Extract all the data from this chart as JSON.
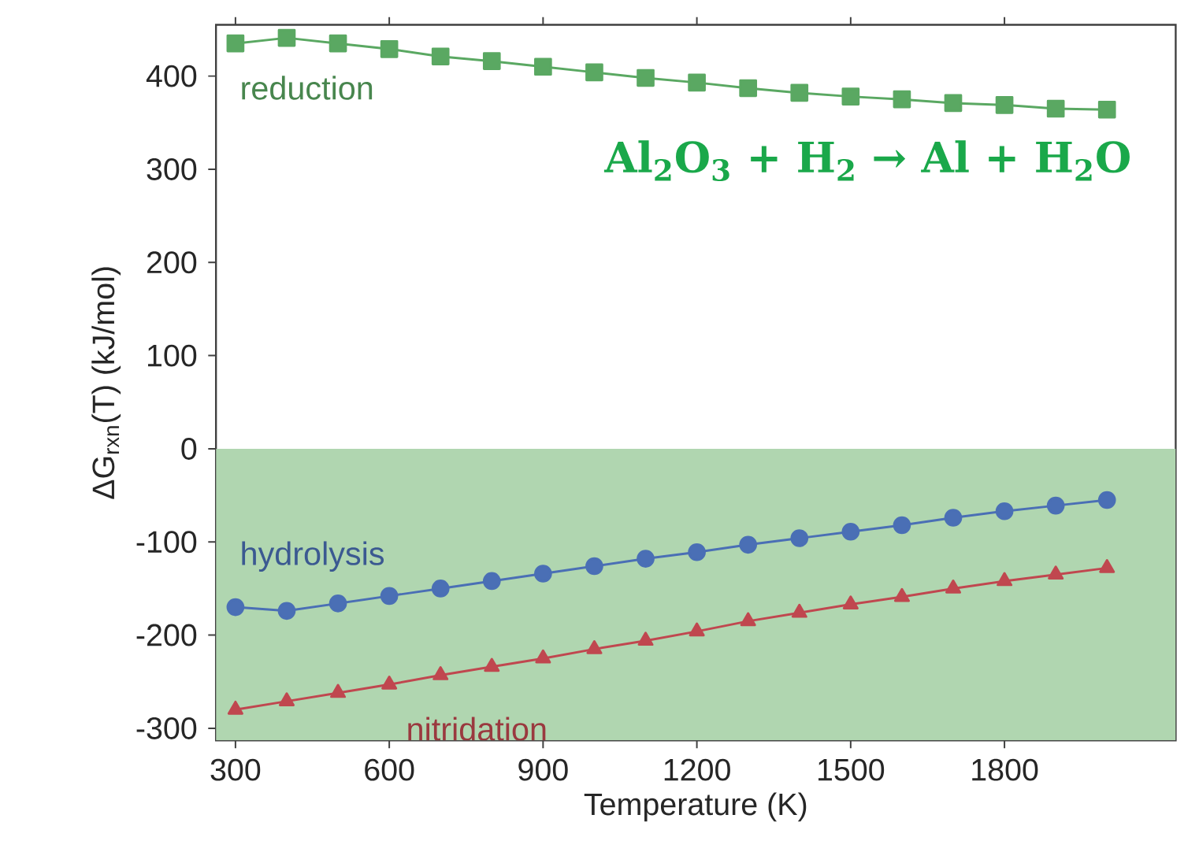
{
  "chart_data": {
    "type": "line",
    "xlabel": "Temperature (K)",
    "ylabel": "ΔG$_{rxn}$(T) (kJ/mol)",
    "x": [
      300,
      400,
      500,
      600,
      700,
      800,
      900,
      1000,
      1100,
      1200,
      1300,
      1400,
      1500,
      1600,
      1700,
      1800,
      1900,
      2000
    ],
    "series": [
      {
        "name": "reduction",
        "color": "#5aa862",
        "marker": "square",
        "values": [
          435,
          441,
          435,
          429,
          421,
          416,
          410,
          404,
          398,
          393,
          387,
          382,
          378,
          375,
          371,
          369,
          365,
          364
        ]
      },
      {
        "name": "hydrolysis",
        "color": "#4a6fb5",
        "marker": "circle",
        "values": [
          -170,
          -174,
          -166,
          -158,
          -150,
          -142,
          -134,
          -126,
          -118,
          -111,
          -103,
          -96,
          -89,
          -82,
          -74,
          -67,
          -61,
          -55
        ]
      },
      {
        "name": "nitridation",
        "color": "#c0474f",
        "marker": "triangle",
        "values": [
          -280,
          -271,
          -262,
          -253,
          -243,
          -234,
          -225,
          -215,
          -206,
          -196,
          -185,
          -176,
          -167,
          -159,
          -150,
          -142,
          -135,
          -128
        ]
      }
    ],
    "annotations": [
      "Al$_{2}$O$_{3}$ + H$_{2}$ → Al + H$_{2}$O"
    ],
    "bands": [
      {
        "axis": "y",
        "from": -313,
        "to": 0,
        "color": "#b0d6b0"
      }
    ],
    "xlim": [
      262,
      2134
    ],
    "ylim": [
      -313,
      455
    ],
    "xticks": [
      300,
      600,
      900,
      1200,
      1500,
      1800
    ],
    "yticks": [
      -300,
      -200,
      -100,
      0,
      100,
      200,
      300,
      400
    ],
    "grid": false,
    "line_style": "solid"
  }
}
